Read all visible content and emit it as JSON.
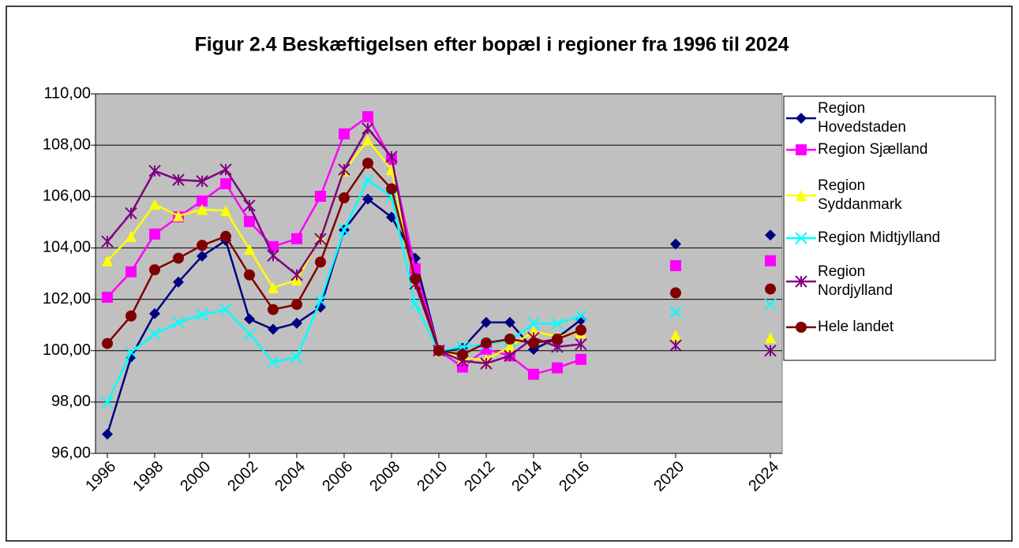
{
  "chart_data": {
    "type": "line",
    "title": "Figur 2.4 Beskæftigelsen efter bopæl i regioner fra 1996 til 2024",
    "x": [
      1996,
      1997,
      1998,
      1999,
      2000,
      2001,
      2002,
      2003,
      2004,
      2005,
      2006,
      2007,
      2008,
      2009,
      2010,
      2011,
      2012,
      2013,
      2014,
      2015,
      2016,
      2017,
      2018,
      2019,
      2020,
      2021,
      2022,
      2023,
      2024
    ],
    "xlim": [
      1995.5,
      2024.5
    ],
    "xticks": [
      1996,
      1998,
      2000,
      2002,
      2004,
      2006,
      2008,
      2010,
      2012,
      2014,
      2016,
      2020,
      2024
    ],
    "ylim": [
      96,
      110
    ],
    "yticks": [
      {
        "value": 96,
        "label": "96,00"
      },
      {
        "value": 98,
        "label": "98,00"
      },
      {
        "value": 100,
        "label": "100,00"
      },
      {
        "value": 102,
        "label": "102,00"
      },
      {
        "value": 104,
        "label": "104,00"
      },
      {
        "value": 106,
        "label": "106,00"
      },
      {
        "value": 108,
        "label": "108,00"
      },
      {
        "value": 110,
        "label": "110,00"
      }
    ],
    "grid": true,
    "background": "#c0c0c0",
    "legend": "right",
    "series": [
      {
        "name": "Region Hovedstaden",
        "color": "#000080",
        "marker": "diamond",
        "values": [
          96.75,
          99.75,
          101.44,
          102.67,
          103.68,
          104.29,
          101.23,
          100.83,
          101.07,
          101.69,
          104.7,
          105.9,
          105.2,
          103.6,
          100,
          100.1,
          101.1,
          101.1,
          100.05,
          100.5,
          101.2,
          null,
          null,
          null,
          104.15,
          null,
          null,
          null,
          104.5
        ]
      },
      {
        "name": "Region Sjælland",
        "color": "#ff00ff",
        "marker": "square",
        "values": [
          102.08,
          103.07,
          104.54,
          105.21,
          105.83,
          106.5,
          105.03,
          104.05,
          104.36,
          106.01,
          108.44,
          109.11,
          107.45,
          103.19,
          100,
          99.36,
          100.06,
          99.8,
          99.08,
          99.33,
          99.66,
          null,
          null,
          null,
          103.31,
          null,
          null,
          null,
          103.5
        ]
      },
      {
        "name": "Region Syddanmark",
        "color": "#ffff00",
        "marker": "triangle",
        "values": [
          103.5,
          104.45,
          105.7,
          105.25,
          105.5,
          105.45,
          103.95,
          102.45,
          102.75,
          104.4,
          107.0,
          108.2,
          107.05,
          102.6,
          100,
          99.7,
          99.65,
          100.15,
          100.75,
          100.55,
          100.7,
          null,
          null,
          null,
          100.6,
          null,
          null,
          null,
          100.5
        ]
      },
      {
        "name": "Region Midtjylland",
        "color": "#00ffff",
        "marker": "x",
        "values": [
          97.97,
          99.94,
          100.65,
          101.1,
          101.4,
          101.6,
          100.65,
          99.55,
          99.75,
          101.95,
          104.7,
          106.65,
          106.0,
          101.8,
          100,
          100.15,
          100.25,
          100.4,
          101.05,
          101.05,
          101.35,
          null,
          null,
          null,
          101.5,
          null,
          null,
          null,
          101.8
        ]
      },
      {
        "name": "Region Nordjylland",
        "color": "#800080",
        "marker": "star",
        "values": [
          104.25,
          105.35,
          107.0,
          106.65,
          106.6,
          107.05,
          105.65,
          103.7,
          102.95,
          104.35,
          107.05,
          108.65,
          107.55,
          102.6,
          100,
          99.6,
          99.5,
          99.8,
          100.5,
          100.15,
          100.25,
          null,
          null,
          null,
          100.2,
          null,
          null,
          null,
          100.0
        ]
      },
      {
        "name": "Hele landet",
        "color": "#800000",
        "marker": "circle",
        "values": [
          100.28,
          101.35,
          103.15,
          103.6,
          104.1,
          104.45,
          102.95,
          101.6,
          101.8,
          103.45,
          105.95,
          107.3,
          106.3,
          102.8,
          100,
          99.85,
          100.3,
          100.45,
          100.3,
          100.45,
          100.8,
          null,
          null,
          null,
          102.25,
          null,
          null,
          null,
          102.4
        ]
      }
    ]
  }
}
